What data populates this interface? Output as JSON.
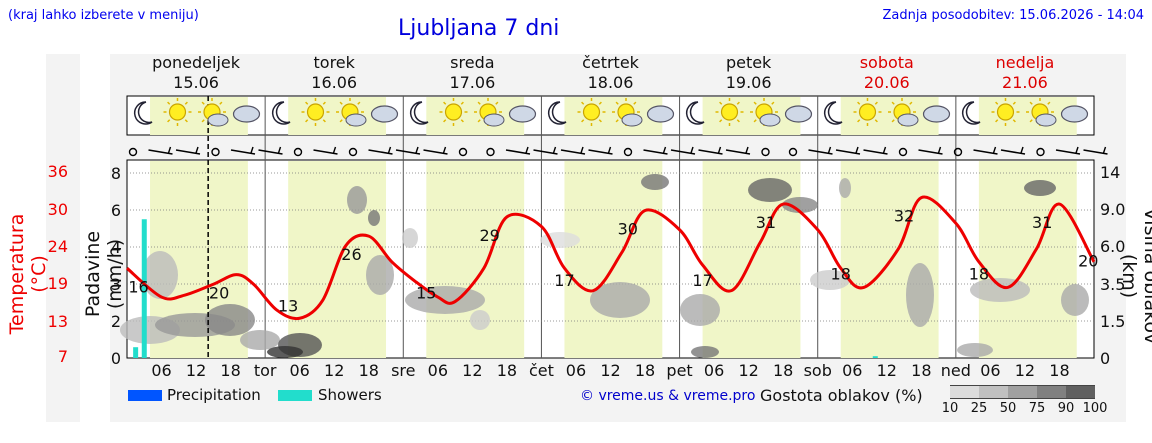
{
  "header": {
    "hint": "(kraj lahko izberete v meniju)",
    "title": "Ljubljana 7 dni",
    "updated": "Zadnja posodobitev: 15.06.2026 - 14:04"
  },
  "days": [
    {
      "name": "ponedeljek",
      "date": "15.06",
      "weekend": false
    },
    {
      "name": "torek",
      "date": "16.06",
      "weekend": false
    },
    {
      "name": "sreda",
      "date": "17.06",
      "weekend": false
    },
    {
      "name": "četrtek",
      "date": "18.06",
      "weekend": false
    },
    {
      "name": "petek",
      "date": "19.06",
      "weekend": false
    },
    {
      "name": "sobota",
      "date": "20.06",
      "weekend": true
    },
    {
      "name": "nedelja",
      "date": "21.06",
      "weekend": true
    }
  ],
  "axes": {
    "temperature_title": "Temperatura (°C)",
    "precip_title": "Padavine (mm/h)",
    "cloud_title": "Višina oblakov (km)",
    "temperature_ticks": [
      "36",
      "30",
      "24",
      "19",
      "13",
      "7"
    ],
    "precip_ticks": [
      "8",
      "6",
      "4",
      "3",
      "2",
      "1",
      "0"
    ],
    "cloud_ticks": [
      "14",
      "9.0",
      "6.0",
      "3.5",
      "1.5",
      "0"
    ],
    "x_day_abbr": [
      "tor",
      "sre",
      "čet",
      "pet",
      "sob",
      "ned"
    ],
    "x_hour_ticks": [
      "06",
      "12",
      "18"
    ]
  },
  "chart_data": {
    "type": "line",
    "x_unit": "hours from 15.06 00:00",
    "xlim": [
      0,
      168
    ],
    "temperature_series": {
      "x": [
        0,
        6,
        10,
        15,
        19,
        22,
        26,
        30,
        34,
        38,
        42,
        46,
        50,
        54,
        57,
        62,
        66,
        72,
        76,
        81,
        86,
        90,
        96,
        100,
        105,
        110,
        114,
        120,
        124,
        128,
        134,
        138,
        144,
        148,
        153,
        158,
        162,
        168
      ],
      "y": [
        21,
        16.5,
        16.8,
        18.5,
        20,
        18.5,
        14.5,
        13.2,
        16,
        24.5,
        26,
        22,
        19,
        16.5,
        15.8,
        21,
        29,
        27.5,
        21,
        17.5,
        23.5,
        30,
        27,
        21.5,
        17.5,
        25,
        31,
        27,
        21,
        18,
        24,
        32,
        28,
        22,
        18,
        24,
        31,
        22
      ]
    },
    "temperature_labels": [
      {
        "x": 2,
        "value": "16"
      },
      {
        "x": 16,
        "value": "20"
      },
      {
        "x": 28,
        "value": "13"
      },
      {
        "x": 39,
        "value": "26"
      },
      {
        "x": 52,
        "value": "15"
      },
      {
        "x": 63,
        "value": "29"
      },
      {
        "x": 76,
        "value": "17"
      },
      {
        "x": 87,
        "value": "30"
      },
      {
        "x": 100,
        "value": "17"
      },
      {
        "x": 111,
        "value": "31"
      },
      {
        "x": 124,
        "value": "18"
      },
      {
        "x": 135,
        "value": "32"
      },
      {
        "x": 148,
        "value": "18"
      },
      {
        "x": 159,
        "value": "31"
      },
      {
        "x": 167,
        "value": "20"
      }
    ],
    "showers": [
      {
        "x": 1.5,
        "value": 0.6
      },
      {
        "x": 3,
        "value": 5.5
      },
      {
        "x": 130,
        "value": 0.1
      }
    ],
    "precipitation": [],
    "current_time_x": 14.1,
    "daylight": [
      [
        4,
        21
      ],
      [
        28,
        45
      ],
      [
        52,
        69
      ],
      [
        76,
        93
      ],
      [
        100,
        117
      ],
      [
        124,
        141
      ],
      [
        148,
        165
      ]
    ]
  },
  "legend": {
    "precipitation": {
      "label": "Precipitation",
      "color": "#0055ff"
    },
    "showers": {
      "label": "Showers",
      "color": "#22ddcc"
    }
  },
  "footer": {
    "copyright": "© vreme.us & vreme.pro",
    "density_title": "Gostota oblakov (%)",
    "density_labels": [
      "10",
      "25",
      "50",
      "75",
      "90",
      "100"
    ]
  },
  "colors": {
    "temperature": "#ee0000",
    "daylight": "#f0f6c8",
    "plot_bg": "#ffffff"
  }
}
